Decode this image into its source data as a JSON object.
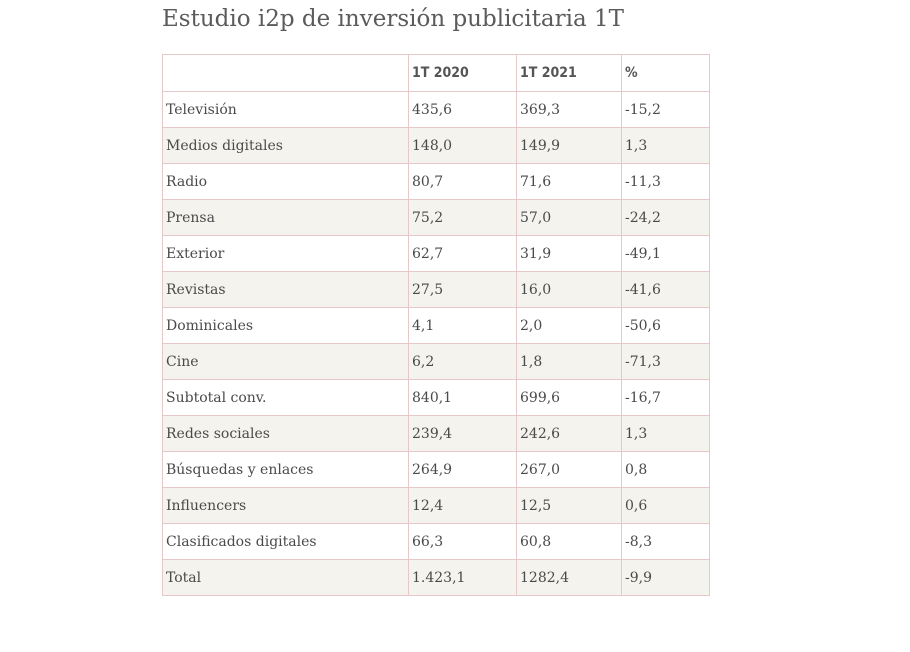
{
  "title": "Estudio i2p de inversión publicitaria 1T",
  "table": {
    "headers": [
      "",
      "1T 2020",
      "1T 2021",
      "%"
    ],
    "rows": [
      [
        "Televisión",
        "435,6",
        "369,3",
        "-15,2"
      ],
      [
        "Medios digitales",
        "148,0",
        "149,9",
        "1,3"
      ],
      [
        "Radio",
        "80,7",
        "71,6",
        "-11,3"
      ],
      [
        "Prensa",
        "75,2",
        "57,0",
        "-24,2"
      ],
      [
        "Exterior",
        "62,7",
        "31,9",
        "-49,1"
      ],
      [
        "Revistas",
        "27,5",
        "16,0",
        "-41,6"
      ],
      [
        "Dominicales",
        "4,1",
        "2,0",
        "-50,6"
      ],
      [
        "Cine",
        "6,2",
        "1,8",
        "-71,3"
      ],
      [
        "Subtotal conv.",
        "840,1",
        "699,6",
        "-16,7"
      ],
      [
        "Redes sociales",
        "239,4",
        "242,6",
        "1,3"
      ],
      [
        "Búsquedas y enlaces",
        "264,9",
        "267,0",
        "0,8"
      ],
      [
        "Influencers",
        "12,4",
        "12,5",
        "0,6"
      ],
      [
        "Clasificados digitales",
        "66,3",
        "60,8",
        "-8,3"
      ],
      [
        "Total",
        "1.423,1",
        "1282,4",
        "-9,9"
      ]
    ]
  },
  "colors": {
    "border": "#e6c8c8",
    "stripe": "#f5f3ee",
    "text": "#4a4a4a"
  }
}
